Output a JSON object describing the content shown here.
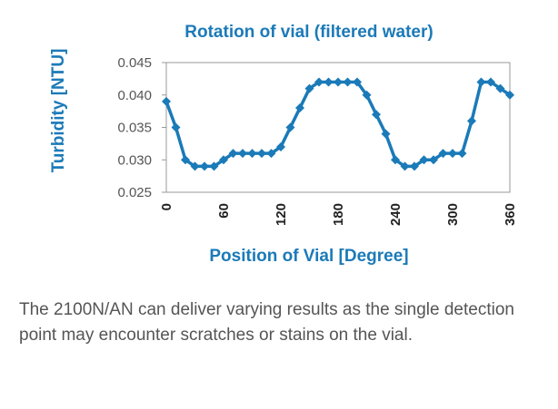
{
  "colors": {
    "accent": "#1b7ab8",
    "series": "#1b7ab8",
    "axis": "#999999",
    "caption": "#555555"
  },
  "chart_data": {
    "type": "line",
    "title": "Rotation of vial (filtered water)",
    "xlabel": "Position of Vial [Degree]",
    "ylabel": "Turbidity [NTU]",
    "xlim": [
      0,
      360
    ],
    "ylim": [
      0.025,
      0.045
    ],
    "yticks": [
      "0.025",
      "0.030",
      "0.035",
      "0.040",
      "0.045"
    ],
    "xticks": [
      "0",
      "60",
      "120",
      "180",
      "240",
      "300",
      "360"
    ],
    "grid": false,
    "marker": "diamond",
    "x": [
      0,
      10,
      20,
      30,
      40,
      50,
      60,
      70,
      80,
      90,
      100,
      110,
      120,
      130,
      140,
      150,
      160,
      170,
      180,
      190,
      200,
      210,
      220,
      230,
      240,
      250,
      260,
      270,
      280,
      290,
      300,
      310,
      320,
      330,
      340,
      350,
      360
    ],
    "y": [
      0.039,
      0.035,
      0.03,
      0.029,
      0.029,
      0.029,
      0.03,
      0.031,
      0.031,
      0.031,
      0.031,
      0.031,
      0.032,
      0.035,
      0.038,
      0.041,
      0.042,
      0.042,
      0.042,
      0.042,
      0.042,
      0.04,
      0.037,
      0.034,
      0.03,
      0.029,
      0.029,
      0.03,
      0.03,
      0.031,
      0.031,
      0.031,
      0.036,
      0.042,
      0.042,
      0.041,
      0.04
    ]
  },
  "caption": "The 2100N/AN can deliver varying results as the single detection point may encounter scratches or stains on the vial."
}
